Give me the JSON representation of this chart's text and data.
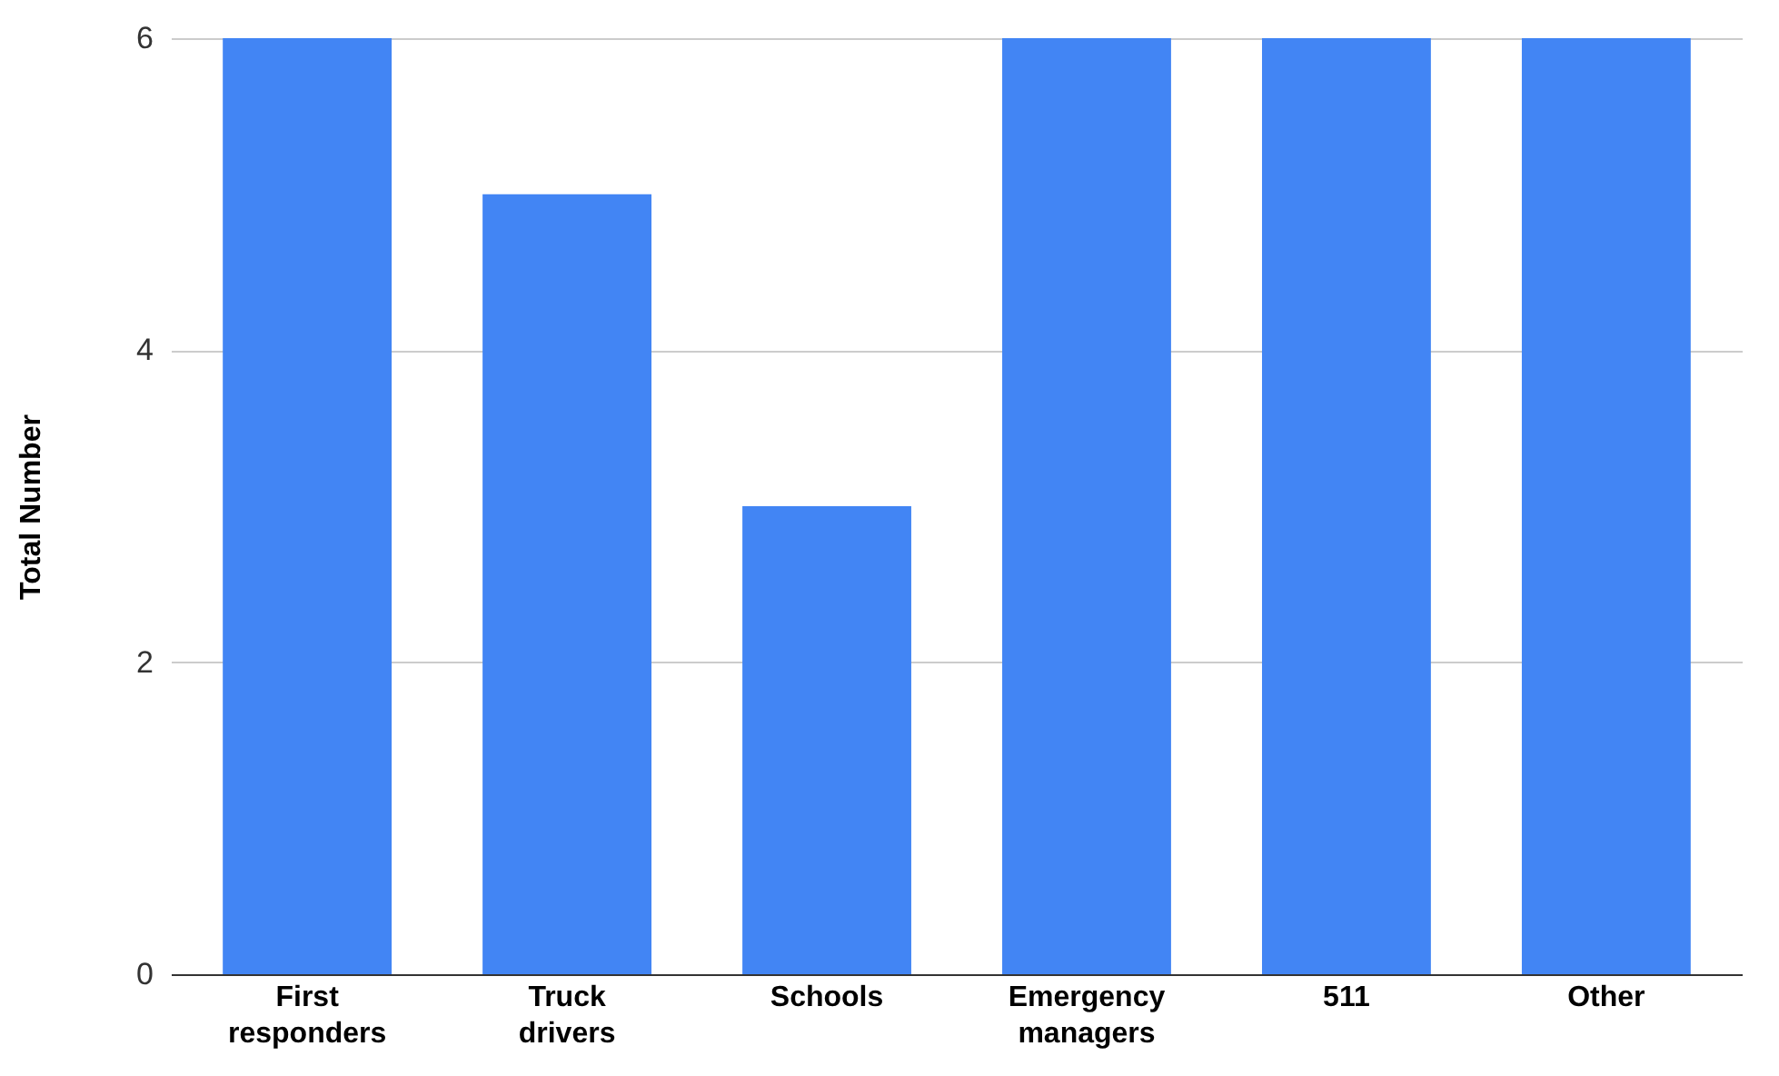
{
  "chart_data": {
    "type": "bar",
    "ylabel": "Total Number",
    "categories": [
      "First responders",
      "Truck drivers",
      "Schools",
      "Emergency managers",
      "511",
      "Other"
    ],
    "values": [
      6,
      5,
      3,
      6,
      6,
      6
    ],
    "color": "#4285f4",
    "ylim": [
      0,
      6
    ],
    "yticks": [
      0,
      2,
      4,
      6
    ],
    "grid": "y"
  }
}
